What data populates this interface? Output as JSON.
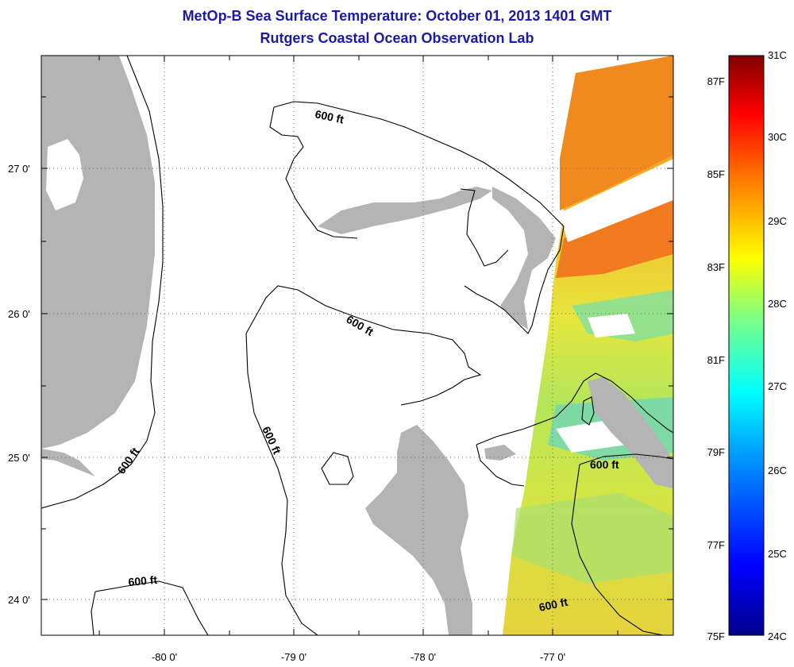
{
  "title": "MetOp-B Sea Surface Temperature:  October 01, 2013 1401 GMT",
  "subtitle": "Rutgers Coastal Ocean Observation Lab",
  "latitude_labels": [
    "27 0'",
    "26 0'",
    "25 0'",
    "24 0'"
  ],
  "longitude_labels": [
    "-80 0'",
    "-79 0'",
    "-78 0'",
    "-77 0'"
  ],
  "contour_labels": [
    "600 ft",
    "600 ft",
    "600 ft",
    "600 ft",
    "600 ft",
    "600 ft"
  ],
  "colorbar": {
    "celsius_labels": [
      "31C",
      "30C",
      "29C",
      "28C",
      "27C",
      "26C",
      "25C",
      "24C"
    ],
    "fahrenheit_labels": [
      "87F",
      "85F",
      "83F",
      "81F",
      "79F",
      "77F",
      "75F"
    ],
    "min_c": 24,
    "max_c": 31
  },
  "colors": {
    "land": "#b4b4b4",
    "title_blue": "#1a1aa6",
    "sst_warm": "#f08a1e",
    "sst_mid": "#e6e63c",
    "sst_cool": "#46c8c8"
  }
}
